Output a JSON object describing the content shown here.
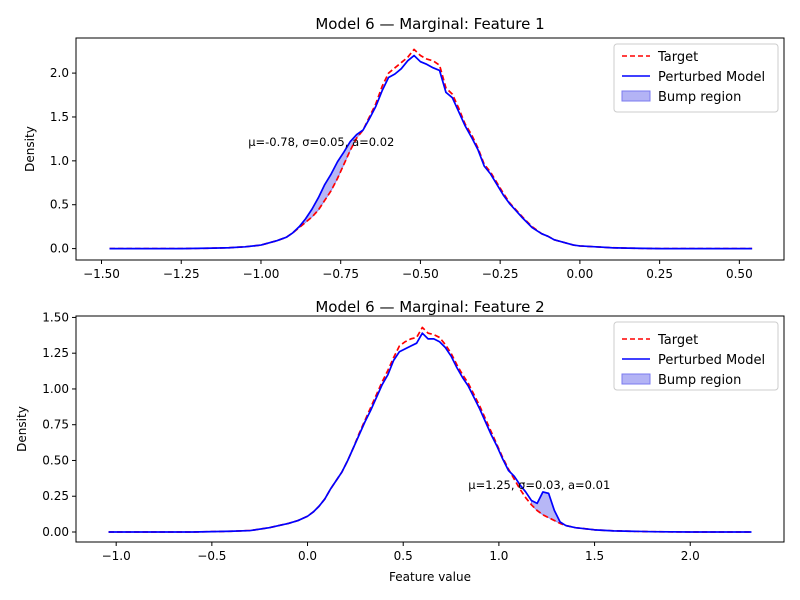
{
  "colors": {
    "target": "#ff0000",
    "model": "#0000ff",
    "bump_fill": "#b3b3f5",
    "bump_edge": "#7b7bf0"
  },
  "chart_data": [
    {
      "type": "line",
      "title": "Model 6 — Marginal: Feature 1",
      "xlabel": "",
      "ylabel": "Density",
      "xlim": [
        -1.58,
        0.64
      ],
      "ylim": [
        -0.13,
        2.4
      ],
      "xticks": [
        -1.5,
        -1.25,
        -1.0,
        -0.75,
        -0.5,
        -0.25,
        0.0,
        0.25,
        0.5
      ],
      "xtick_labels": [
        "−1.50",
        "−1.25",
        "−1.00",
        "−0.75",
        "−0.50",
        "−0.25",
        "0.00",
        "0.25",
        "0.50"
      ],
      "yticks": [
        0.0,
        0.5,
        1.0,
        1.5,
        2.0
      ],
      "ytick_labels": [
        "0.0",
        "0.5",
        "1.0",
        "1.5",
        "2.0"
      ],
      "legend": {
        "position": "top-right",
        "entries": [
          "Target",
          "Perturbed Model",
          "Bump region"
        ]
      },
      "annotation": {
        "text": "μ=-0.78, σ=0.05, a=0.02",
        "x": -1.04,
        "y": 1.17
      },
      "bump": {
        "mu": -0.78,
        "sigma": 0.05,
        "a": 0.02,
        "range": [
          -0.88,
          -0.68
        ]
      },
      "series": [
        {
          "name": "Target",
          "style": "dashed",
          "x": [
            -1.475,
            -1.35,
            -1.25,
            -1.15,
            -1.1,
            -1.05,
            -1.0,
            -0.95,
            -0.92,
            -0.9,
            -0.88,
            -0.86,
            -0.84,
            -0.82,
            -0.8,
            -0.78,
            -0.76,
            -0.74,
            -0.72,
            -0.7,
            -0.68,
            -0.66,
            -0.64,
            -0.62,
            -0.6,
            -0.58,
            -0.56,
            -0.54,
            -0.52,
            -0.5,
            -0.48,
            -0.46,
            -0.44,
            -0.42,
            -0.4,
            -0.38,
            -0.36,
            -0.34,
            -0.32,
            -0.3,
            -0.28,
            -0.26,
            -0.24,
            -0.22,
            -0.2,
            -0.18,
            -0.15,
            -0.12,
            -0.1,
            -0.08,
            -0.05,
            -0.02,
            0.0,
            0.05,
            0.1,
            0.15,
            0.25,
            0.35,
            0.45,
            0.54
          ],
          "y": [
            0.0,
            0.0,
            0.0,
            0.005,
            0.01,
            0.02,
            0.04,
            0.09,
            0.13,
            0.18,
            0.24,
            0.3,
            0.36,
            0.44,
            0.55,
            0.66,
            0.8,
            0.96,
            1.12,
            1.26,
            1.35,
            1.5,
            1.65,
            1.85,
            2.0,
            2.06,
            2.12,
            2.18,
            2.27,
            2.2,
            2.16,
            2.14,
            2.09,
            1.83,
            1.76,
            1.6,
            1.42,
            1.3,
            1.15,
            0.96,
            0.87,
            0.75,
            0.63,
            0.52,
            0.44,
            0.36,
            0.25,
            0.17,
            0.14,
            0.1,
            0.07,
            0.04,
            0.03,
            0.02,
            0.01,
            0.005,
            0.0,
            0.0,
            0.0,
            0.0
          ]
        },
        {
          "name": "Perturbed Model",
          "style": "solid",
          "x": [
            -1.475,
            -1.35,
            -1.25,
            -1.15,
            -1.1,
            -1.05,
            -1.0,
            -0.95,
            -0.92,
            -0.9,
            -0.88,
            -0.86,
            -0.84,
            -0.82,
            -0.8,
            -0.78,
            -0.76,
            -0.74,
            -0.72,
            -0.7,
            -0.68,
            -0.66,
            -0.64,
            -0.62,
            -0.6,
            -0.58,
            -0.56,
            -0.54,
            -0.52,
            -0.5,
            -0.48,
            -0.46,
            -0.44,
            -0.42,
            -0.4,
            -0.38,
            -0.36,
            -0.34,
            -0.32,
            -0.3,
            -0.28,
            -0.26,
            -0.24,
            -0.22,
            -0.2,
            -0.18,
            -0.15,
            -0.12,
            -0.1,
            -0.08,
            -0.05,
            -0.02,
            0.0,
            0.05,
            0.1,
            0.15,
            0.25,
            0.35,
            0.45,
            0.54
          ],
          "y": [
            0.0,
            0.0,
            0.0,
            0.005,
            0.01,
            0.02,
            0.04,
            0.09,
            0.13,
            0.18,
            0.25,
            0.34,
            0.45,
            0.58,
            0.73,
            0.85,
            0.99,
            1.1,
            1.22,
            1.3,
            1.35,
            1.48,
            1.62,
            1.8,
            1.95,
            1.99,
            2.05,
            2.14,
            2.2,
            2.13,
            2.1,
            2.06,
            2.03,
            1.78,
            1.72,
            1.56,
            1.4,
            1.27,
            1.13,
            0.94,
            0.85,
            0.73,
            0.61,
            0.51,
            0.43,
            0.35,
            0.24,
            0.17,
            0.14,
            0.1,
            0.07,
            0.04,
            0.03,
            0.02,
            0.01,
            0.005,
            0.0,
            0.0,
            0.0,
            0.0
          ]
        }
      ]
    },
    {
      "type": "line",
      "title": "Model 6 — Marginal: Feature 2",
      "xlabel": "Feature value",
      "ylabel": "Density",
      "xlim": [
        -1.21,
        2.49
      ],
      "ylim": [
        -0.07,
        1.51
      ],
      "xticks": [
        -1.0,
        -0.5,
        0.0,
        0.5,
        1.0,
        1.5,
        2.0
      ],
      "xtick_labels": [
        "−1.0",
        "−0.5",
        "0.0",
        "0.5",
        "1.0",
        "1.5",
        "2.0"
      ],
      "yticks": [
        0.0,
        0.25,
        0.5,
        0.75,
        1.0,
        1.25,
        1.5
      ],
      "ytick_labels": [
        "0.00",
        "0.25",
        "0.50",
        "0.75",
        "1.00",
        "1.25",
        "1.50"
      ],
      "legend": {
        "position": "top-right",
        "entries": [
          "Target",
          "Perturbed Model",
          "Bump region"
        ]
      },
      "annotation": {
        "text": "μ=1.25, σ=0.03, a=0.01",
        "x": 0.84,
        "y": 0.3
      },
      "bump": {
        "mu": 1.25,
        "sigma": 0.03,
        "a": 0.01,
        "range": [
          1.17,
          1.33
        ]
      },
      "series": [
        {
          "name": "Target",
          "style": "dashed",
          "x": [
            -1.04,
            -0.8,
            -0.6,
            -0.4,
            -0.3,
            -0.2,
            -0.1,
            -0.05,
            0.0,
            0.03,
            0.06,
            0.09,
            0.12,
            0.15,
            0.18,
            0.21,
            0.24,
            0.27,
            0.3,
            0.33,
            0.36,
            0.39,
            0.42,
            0.45,
            0.48,
            0.51,
            0.54,
            0.57,
            0.6,
            0.63,
            0.66,
            0.69,
            0.72,
            0.75,
            0.78,
            0.81,
            0.84,
            0.87,
            0.9,
            0.93,
            0.96,
            0.99,
            1.02,
            1.05,
            1.08,
            1.11,
            1.14,
            1.17,
            1.2,
            1.23,
            1.26,
            1.29,
            1.32,
            1.35,
            1.4,
            1.5,
            1.6,
            1.8,
            2.0,
            2.2,
            2.32
          ],
          "y": [
            0.0,
            0.0,
            0.0,
            0.005,
            0.01,
            0.03,
            0.06,
            0.08,
            0.11,
            0.14,
            0.18,
            0.23,
            0.3,
            0.36,
            0.42,
            0.5,
            0.59,
            0.69,
            0.78,
            0.87,
            0.96,
            1.05,
            1.13,
            1.22,
            1.3,
            1.33,
            1.35,
            1.36,
            1.43,
            1.39,
            1.38,
            1.36,
            1.31,
            1.25,
            1.17,
            1.1,
            1.04,
            0.96,
            0.88,
            0.79,
            0.7,
            0.61,
            0.52,
            0.44,
            0.37,
            0.3,
            0.24,
            0.19,
            0.15,
            0.12,
            0.1,
            0.08,
            0.06,
            0.045,
            0.03,
            0.015,
            0.008,
            0.002,
            0.0,
            0.0,
            0.0
          ]
        },
        {
          "name": "Perturbed Model",
          "style": "solid",
          "x": [
            -1.04,
            -0.8,
            -0.6,
            -0.4,
            -0.3,
            -0.2,
            -0.1,
            -0.05,
            0.0,
            0.03,
            0.06,
            0.09,
            0.12,
            0.15,
            0.18,
            0.21,
            0.24,
            0.27,
            0.3,
            0.33,
            0.36,
            0.39,
            0.42,
            0.45,
            0.48,
            0.51,
            0.54,
            0.57,
            0.6,
            0.63,
            0.66,
            0.69,
            0.72,
            0.75,
            0.78,
            0.81,
            0.84,
            0.87,
            0.9,
            0.93,
            0.96,
            0.99,
            1.02,
            1.05,
            1.08,
            1.11,
            1.14,
            1.17,
            1.2,
            1.23,
            1.26,
            1.29,
            1.32,
            1.35,
            1.4,
            1.5,
            1.6,
            1.8,
            2.0,
            2.2,
            2.32
          ],
          "y": [
            0.0,
            0.0,
            0.0,
            0.005,
            0.01,
            0.03,
            0.06,
            0.08,
            0.11,
            0.14,
            0.18,
            0.23,
            0.3,
            0.36,
            0.42,
            0.5,
            0.59,
            0.68,
            0.77,
            0.85,
            0.94,
            1.03,
            1.1,
            1.2,
            1.26,
            1.28,
            1.3,
            1.32,
            1.39,
            1.35,
            1.35,
            1.33,
            1.29,
            1.23,
            1.15,
            1.08,
            1.02,
            0.94,
            0.86,
            0.77,
            0.68,
            0.6,
            0.51,
            0.43,
            0.39,
            0.33,
            0.28,
            0.22,
            0.2,
            0.28,
            0.27,
            0.15,
            0.07,
            0.045,
            0.03,
            0.015,
            0.008,
            0.002,
            0.0,
            0.0,
            0.0
          ]
        }
      ]
    }
  ]
}
